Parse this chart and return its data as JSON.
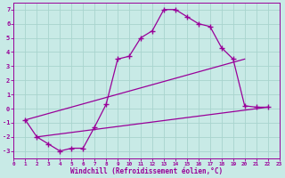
{
  "xlabel": "Windchill (Refroidissement éolien,°C)",
  "bg_color": "#c8eae6",
  "grid_color": "#a8d4ce",
  "line_color": "#990099",
  "xlim": [
    0,
    23
  ],
  "ylim": [
    -3.5,
    7.5
  ],
  "yticks": [
    -3,
    -2,
    -1,
    0,
    1,
    2,
    3,
    4,
    5,
    6,
    7
  ],
  "xticks": [
    0,
    1,
    2,
    3,
    4,
    5,
    6,
    7,
    8,
    9,
    10,
    11,
    12,
    13,
    14,
    15,
    16,
    17,
    18,
    19,
    20,
    21,
    22,
    23
  ],
  "curve_x": [
    1,
    2,
    3,
    4,
    5,
    6,
    7,
    8,
    9,
    10,
    11,
    12,
    13,
    14,
    15,
    16,
    17,
    18,
    19,
    20,
    21,
    22
  ],
  "curve_y": [
    -0.8,
    -2.0,
    -2.5,
    -3.0,
    -2.8,
    -2.8,
    -1.3,
    0.3,
    3.5,
    3.7,
    5.0,
    5.5,
    7.0,
    7.0,
    6.5,
    6.0,
    5.8,
    4.3,
    3.5,
    0.2,
    0.1,
    0.1
  ],
  "upper_line_x": [
    1,
    20
  ],
  "upper_line_y": [
    -0.8,
    3.5
  ],
  "lower_line_x": [
    2,
    22
  ],
  "lower_line_y": [
    -2.0,
    0.1
  ]
}
